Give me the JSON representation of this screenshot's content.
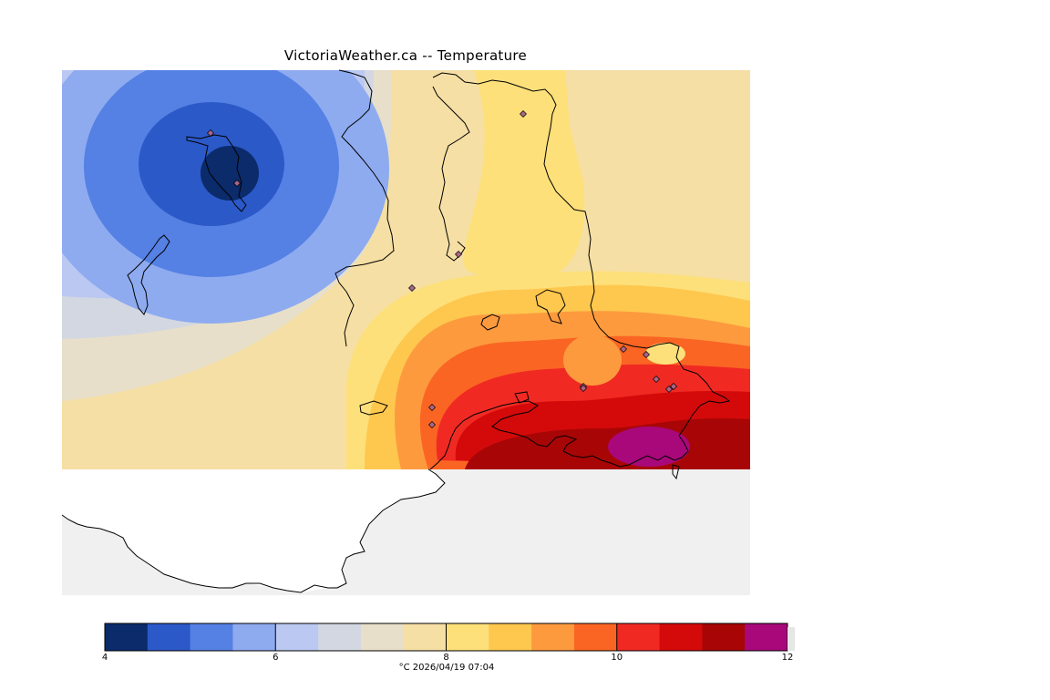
{
  "title": "VictoriaWeather.ca -- Temperature",
  "caption": "°C  2026/04/19 07:04",
  "colors": {
    "land_nodata": "#f0f0f0",
    "ocean": "#ffffff",
    "coast": "#000000",
    "station_marker": "#aa6688"
  },
  "legend": {
    "min": 4,
    "max": 12,
    "tick_labels": [
      "4",
      "6",
      "8",
      "10",
      "12"
    ],
    "tick_values": [
      4,
      6,
      8,
      10,
      12
    ],
    "bins": [
      {
        "from": 4.0,
        "to": 4.5,
        "color": "#0b2b6b"
      },
      {
        "from": 4.5,
        "to": 5.0,
        "color": "#2b59c8"
      },
      {
        "from": 5.0,
        "to": 5.5,
        "color": "#5580e4"
      },
      {
        "from": 5.5,
        "to": 6.0,
        "color": "#8eabf0"
      },
      {
        "from": 6.0,
        "to": 6.5,
        "color": "#bbc8f2"
      },
      {
        "from": 6.5,
        "to": 7.0,
        "color": "#d2d7e2"
      },
      {
        "from": 7.0,
        "to": 7.5,
        "color": "#e7dfc9"
      },
      {
        "from": 7.5,
        "to": 8.0,
        "color": "#f5dfa4"
      },
      {
        "from": 8.0,
        "to": 8.5,
        "color": "#fde07a"
      },
      {
        "from": 8.5,
        "to": 9.0,
        "color": "#fec74e"
      },
      {
        "from": 9.0,
        "to": 9.5,
        "color": "#fd9a3e"
      },
      {
        "from": 9.5,
        "to": 10.0,
        "color": "#fb6523"
      },
      {
        "from": 10.0,
        "to": 10.5,
        "color": "#f02a23"
      },
      {
        "from": 10.5,
        "to": 11.0,
        "color": "#d40a0a"
      },
      {
        "from": 11.0,
        "to": 11.5,
        "color": "#a80606"
      },
      {
        "from": 11.5,
        "to": 12.0,
        "color": "#a8087a"
      }
    ]
  },
  "stations": [
    {
      "id": "s1"
    },
    {
      "id": "s2"
    },
    {
      "id": "s3"
    },
    {
      "id": "s4"
    },
    {
      "id": "s5"
    },
    {
      "id": "s6"
    },
    {
      "id": "s7"
    },
    {
      "id": "s8"
    },
    {
      "id": "s9"
    },
    {
      "id": "s10"
    },
    {
      "id": "s11"
    },
    {
      "id": "s12"
    },
    {
      "id": "s13"
    },
    {
      "id": "s14"
    }
  ]
}
